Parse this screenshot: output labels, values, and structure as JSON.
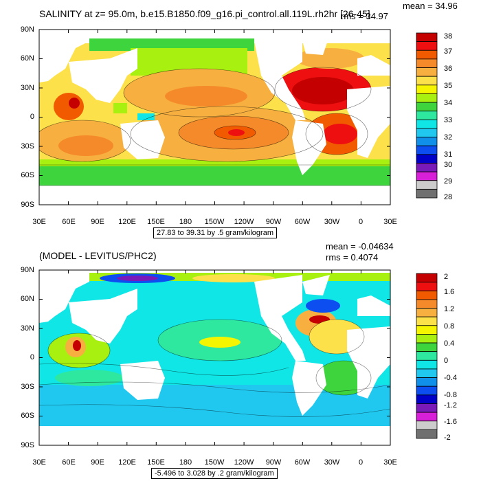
{
  "panels": [
    {
      "title": "SALINITY at z=  95.0m, b.e15.B1850.f09_g16.pi_control.all.119L.rh2hr [26-45]",
      "mean": "mean = 34.96",
      "rms": "rms = 34.97",
      "range_label": "27.83 to 39.31 by .5 gram/kilogram",
      "ylabels": [
        "90N",
        "60N",
        "30N",
        "0",
        "30S",
        "60S",
        "90S"
      ],
      "xlabels": [
        "30E",
        "60E",
        "90E",
        "120E",
        "150E",
        "180",
        "150W",
        "120W",
        "90W",
        "60W",
        "30W",
        "0",
        "30E"
      ],
      "colorbar": {
        "labels": [
          "38",
          "37",
          "36",
          "35",
          "34",
          "33",
          "32",
          "31",
          "30",
          "29",
          "28"
        ],
        "colors": [
          "#c40000",
          "#ee1010",
          "#f25a00",
          "#f58a2a",
          "#f7b040",
          "#fde14a",
          "#f5f500",
          "#a8f010",
          "#3ed43e",
          "#2ee8a0",
          "#10e6e6",
          "#20c8f0",
          "#1090e8",
          "#0c4ef0",
          "#0000c8",
          "#7a1ab8",
          "#d820d8",
          "#cccccc",
          "#707070"
        ]
      }
    },
    {
      "title": "(MODEL - LEVITUS/PHC2)",
      "mean": "mean = -0.04634",
      "rms": "rms = 0.4074",
      "range_label": "-5.496 to 3.028 by .2 gram/kilogram",
      "ylabels": [
        "90N",
        "60N",
        "30N",
        "0",
        "30S",
        "60S",
        "90S"
      ],
      "xlabels": [
        "30E",
        "60E",
        "90E",
        "120E",
        "150E",
        "180",
        "150W",
        "120W",
        "90W",
        "60W",
        "30W",
        "0",
        "30E"
      ],
      "colorbar": {
        "labels": [
          "2",
          "1.6",
          "1.2",
          "0.8",
          "0.4",
          "0",
          "-0.4",
          "-0.8",
          "-1.2",
          "-1.6",
          "-2"
        ],
        "colors": [
          "#c40000",
          "#ee1010",
          "#f25a00",
          "#f58a2a",
          "#f7b040",
          "#fde14a",
          "#f5f500",
          "#a8f010",
          "#3ed43e",
          "#2ee8a0",
          "#10e6e6",
          "#20c8f0",
          "#1090e8",
          "#0c4ef0",
          "#0000c8",
          "#7a1ab8",
          "#d820d8",
          "#cccccc",
          "#707070"
        ]
      }
    }
  ]
}
